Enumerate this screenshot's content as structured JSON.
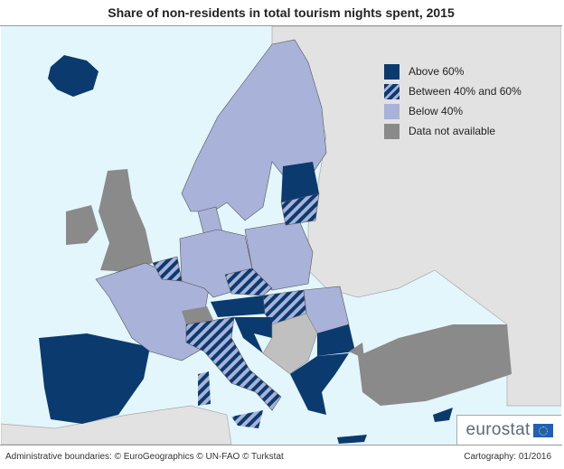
{
  "title": "Share of non-residents in total tourism nights spent, 2015",
  "legend": {
    "items": [
      {
        "label": "Above 60%",
        "color": "#0b3a6f",
        "pattern": "solid"
      },
      {
        "label": "Between 40% and 60%",
        "color": "#0b3a6f",
        "pattern": "hatched"
      },
      {
        "label": "Below 40%",
        "color": "#a9b2d9",
        "pattern": "solid"
      },
      {
        "label": "Data not available",
        "color": "#8a8a8a",
        "pattern": "solid"
      }
    ]
  },
  "footer": {
    "credits": "Administrative boundaries: © EuroGeographics © UN-FAO © Turkstat",
    "cartography": "Cartography: 01/2016"
  },
  "logo": {
    "text": "eurostat"
  }
}
